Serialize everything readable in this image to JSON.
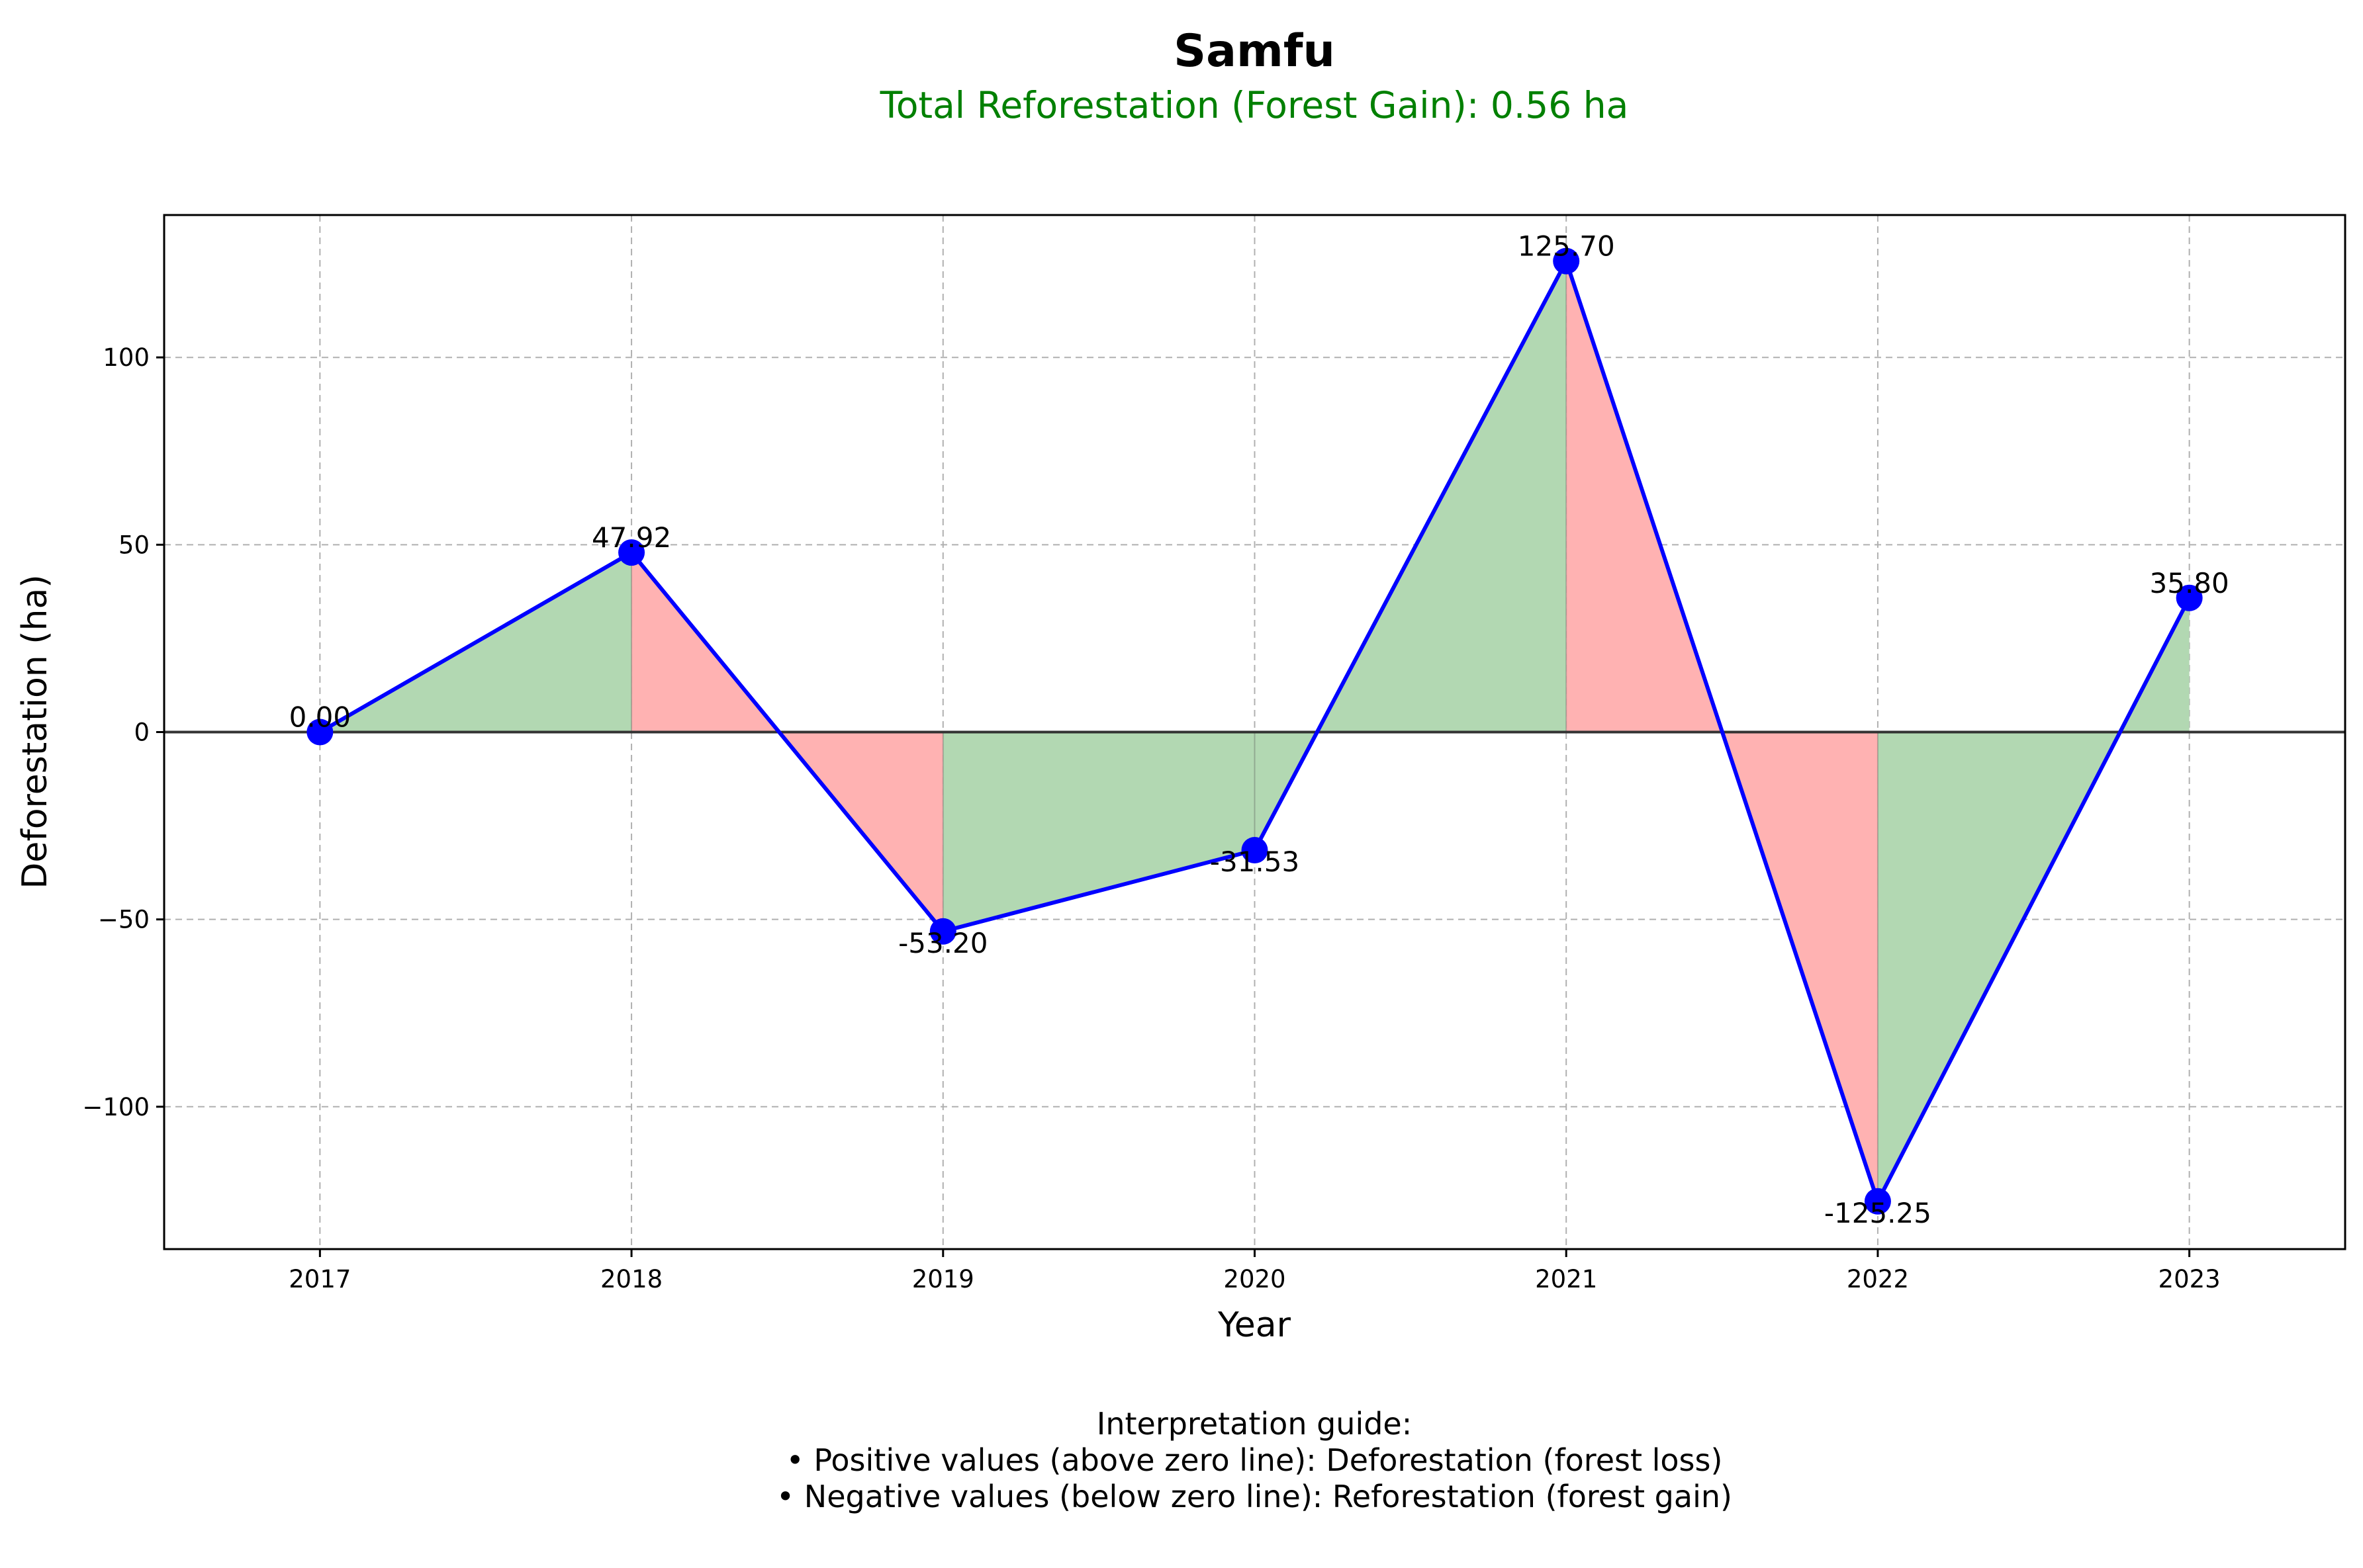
{
  "chart_data": {
    "type": "line",
    "title": "Samfu",
    "subtitle": "Total Reforestation (Forest Gain): 0.56 ha",
    "xlabel": "Year",
    "ylabel": "Deforestation (ha)",
    "categories": [
      "2017",
      "2018",
      "2019",
      "2020",
      "2021",
      "2022",
      "2023"
    ],
    "values": [
      0.0,
      47.92,
      -53.2,
      -31.53,
      125.7,
      -125.25,
      35.8
    ],
    "data_labels": [
      "0.00",
      "47.92",
      "-53.20",
      "-31.53",
      "125.70",
      "-125.25",
      "35.80"
    ],
    "ylim": [
      -138,
      138
    ],
    "yticks": [
      -100,
      -50,
      0,
      50,
      100
    ],
    "ytick_labels": [
      "−100",
      "−50",
      "0",
      "50",
      "100"
    ],
    "grid": true,
    "zero_line": true,
    "fill_colors": {
      "increase": "#b2d8b2",
      "decrease": "#ffb2b2"
    },
    "line_color": "#0000ff",
    "marker_color": "#0000ff",
    "interpretation": {
      "heading": "Interpretation guide:",
      "lines": [
        "• Positive values (above zero line): Deforestation (forest loss)",
        "• Negative values (below zero line): Reforestation (forest gain)"
      ]
    }
  }
}
